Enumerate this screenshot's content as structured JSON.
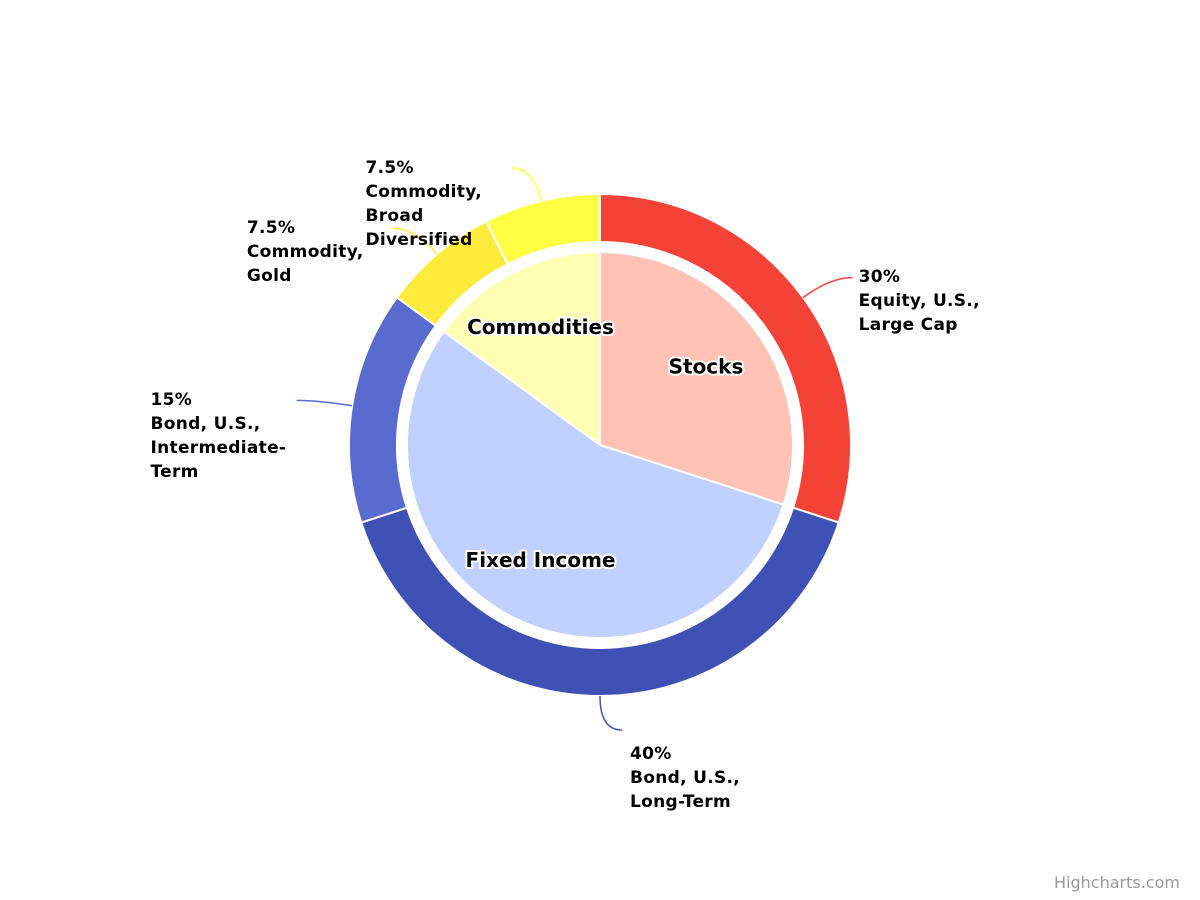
{
  "chart_data": {
    "type": "donut",
    "inner": {
      "categories": [
        "Stocks",
        "Fixed Income",
        "Commodities"
      ],
      "values": [
        30,
        55,
        15
      ],
      "colors": [
        "#ffc2b5",
        "#c0d0ff",
        "#ffffb3"
      ]
    },
    "outer": {
      "names": [
        "Equity, U.S., Large Cap",
        "Bond, U.S., Long-Term",
        "Bond, U.S., Intermediate-Term",
        "Commodity, Gold",
        "Commodity, Broad Diversified"
      ],
      "values": [
        30,
        40,
        15,
        7.5,
        7.5
      ],
      "value_labels": [
        "30%",
        "40%",
        "15%",
        "7.5%",
        "7.5%"
      ],
      "colors": [
        "#f44336",
        "#3f51b5",
        "#5a6bd0",
        "#ffeb3b",
        "#ffff44"
      ]
    },
    "credits": "Highcharts.com"
  }
}
